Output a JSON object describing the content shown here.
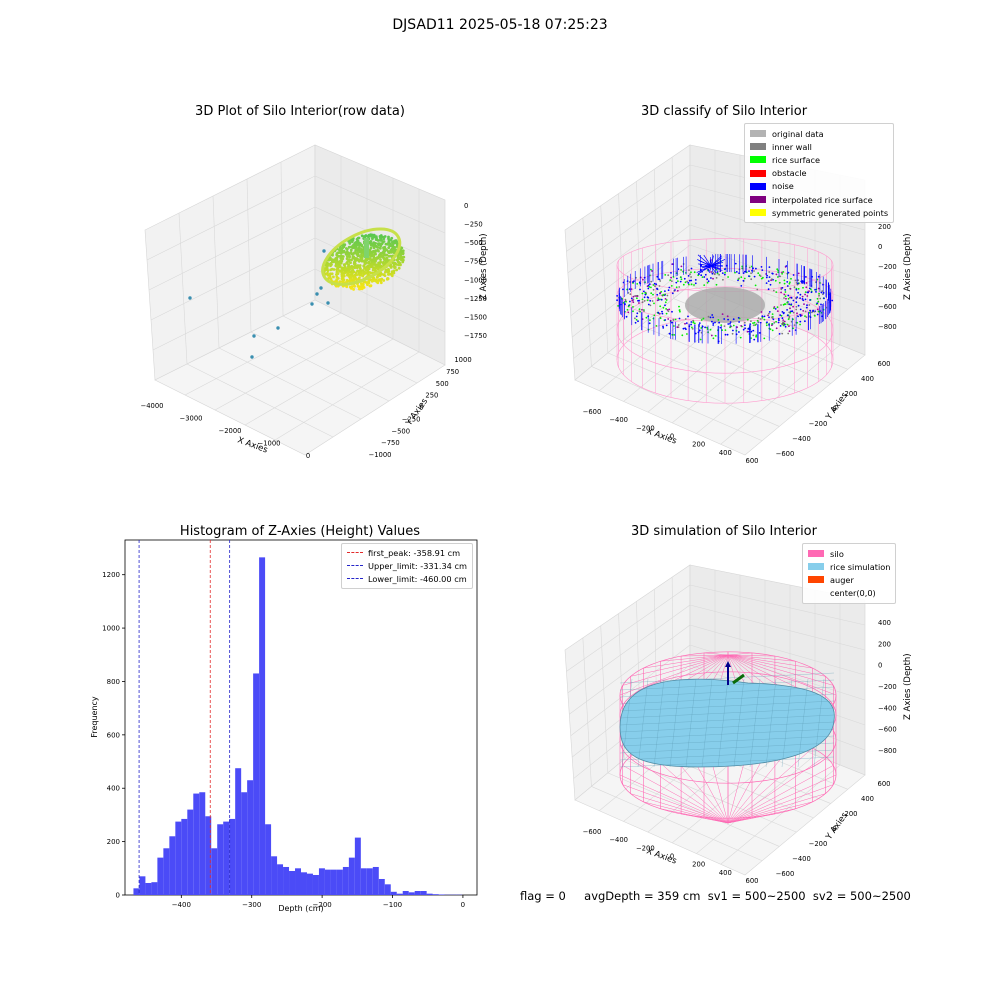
{
  "suptitle": "DJSAD11 2025-05-18 07:25:23",
  "footer": {
    "flag": "flag = 0",
    "avg": "avgDepth = 359 cm  sv1 = 500~2500  sv2 = 500~2500"
  },
  "colors": {
    "hist_bar": "#4b4bf7",
    "first_peak_line": "#e32a2a",
    "limit_line": "#2424c9",
    "silo_wire": "#ff69b4",
    "rice_sim": "#87ceeb",
    "auger": "#ff4500",
    "original": "#b3b3b3",
    "inner_wall": "#808080",
    "rice_surface": "#00ff00",
    "obstacle": "#ff0000",
    "noise": "#0000ff",
    "interp": "#800080",
    "symmetric": "#ffff00"
  },
  "chart_data": [
    {
      "type": "scatter",
      "title": "3D Plot of Silo Interior(row data)",
      "xlabel": "X Axies",
      "ylabel": "Y Axies",
      "zlabel": "Z Axies (Depth)",
      "x_ticks": [
        "−4000",
        "−3000",
        "−2000",
        "−1000",
        "0"
      ],
      "y_ticks": [
        "−1000",
        "−750",
        "−500",
        "−250",
        "0",
        "250",
        "500",
        "750",
        "1000"
      ],
      "z_ticks": [
        "0",
        "−250",
        "−500",
        "−750",
        "−1000",
        "−1250",
        "−1500",
        "−1750"
      ],
      "colormap": "viridis"
    },
    {
      "type": "scatter",
      "title": "3D classify of Silo Interior",
      "xlabel": "X Axies",
      "ylabel": "Y Axies",
      "zlabel": "Z Axies (Depth)",
      "x_ticks": [
        "−600",
        "−400",
        "−200",
        "0",
        "200",
        "400",
        "600"
      ],
      "y_ticks": [
        "−600",
        "−400",
        "−200",
        "0",
        "200",
        "400",
        "600"
      ],
      "z_ticks": [
        "200",
        "0",
        "−200",
        "−400",
        "−600",
        "−800"
      ],
      "legend": [
        "original data",
        "inner wall",
        "rice surface",
        "obstacle",
        "noise",
        "interpolated rice surface",
        "symmetric generated points"
      ],
      "legend_position": "top-right"
    },
    {
      "type": "bar",
      "title": "Histogram of Z-Axies (Height) Values",
      "xlabel": "Depth (cm)",
      "ylabel": "Frequency",
      "bin_width": 8.5,
      "bin_starts": [
        -468,
        -459.5,
        -451,
        -442.5,
        -434,
        -425.5,
        -417,
        -408.5,
        -400,
        -391.5,
        -383,
        -374.5,
        -366,
        -357.5,
        -349,
        -340.5,
        -332,
        -323.5,
        -315,
        -306.5,
        -298,
        -289.5,
        -281,
        -272.5,
        -264,
        -255.5,
        -247,
        -238.5,
        -230,
        -221.5,
        -213,
        -204.5,
        -196,
        -187.5,
        -179,
        -170.5,
        -162,
        -153.5,
        -145,
        -136.5,
        -128,
        -119.5,
        -111,
        -102.5,
        -94,
        -85.5,
        -77,
        -68.5,
        -60,
        -51.5,
        -43,
        -34.5,
        -26,
        -17.5,
        -9.5
      ],
      "values": [
        25,
        70,
        45,
        48,
        140,
        175,
        220,
        275,
        285,
        320,
        380,
        385,
        295,
        175,
        265,
        275,
        285,
        475,
        385,
        430,
        830,
        1265,
        265,
        145,
        115,
        105,
        90,
        100,
        85,
        80,
        75,
        100,
        95,
        95,
        95,
        105,
        140,
        215,
        100,
        100,
        105,
        60,
        40,
        12,
        5,
        15,
        10,
        15,
        15,
        5,
        3,
        2,
        1,
        1,
        1
      ],
      "xlim": [
        -480,
        20
      ],
      "ylim": [
        0,
        1330
      ],
      "x_ticks": [
        -400,
        -300,
        -200,
        -100,
        0
      ],
      "y_ticks": [
        0,
        200,
        400,
        600,
        800,
        1000,
        1200
      ],
      "x_tick_labels": [
        "−400",
        "−300",
        "−200",
        "−100",
        "0"
      ],
      "vlines": [
        {
          "label": "first_peak: -358.91 cm",
          "x": -358.91,
          "color": "#e32a2a"
        },
        {
          "label": "Upper_limit: -331.34 cm",
          "x": -331.34,
          "color": "#2424c9"
        },
        {
          "label": "Lower_limit: -460.00 cm",
          "x": -460.0,
          "color": "#2424c9"
        }
      ],
      "legend_position": "top-right"
    },
    {
      "type": "surface",
      "title": "3D simulation of Silo Interior",
      "xlabel": "X Axies",
      "ylabel": "Y Axies",
      "zlabel": "Z Axies (Depth)",
      "x_ticks": [
        "−600",
        "−400",
        "−200",
        "0",
        "200",
        "400",
        "600"
      ],
      "y_ticks": [
        "−600",
        "−400",
        "−200",
        "0",
        "200",
        "400",
        "600"
      ],
      "z_ticks": [
        "400",
        "200",
        "0",
        "−200",
        "−400",
        "−600",
        "−800"
      ],
      "legend": [
        "silo",
        "rice simulation",
        "auger",
        "center(0,0)"
      ],
      "legend_position": "top-right"
    }
  ]
}
